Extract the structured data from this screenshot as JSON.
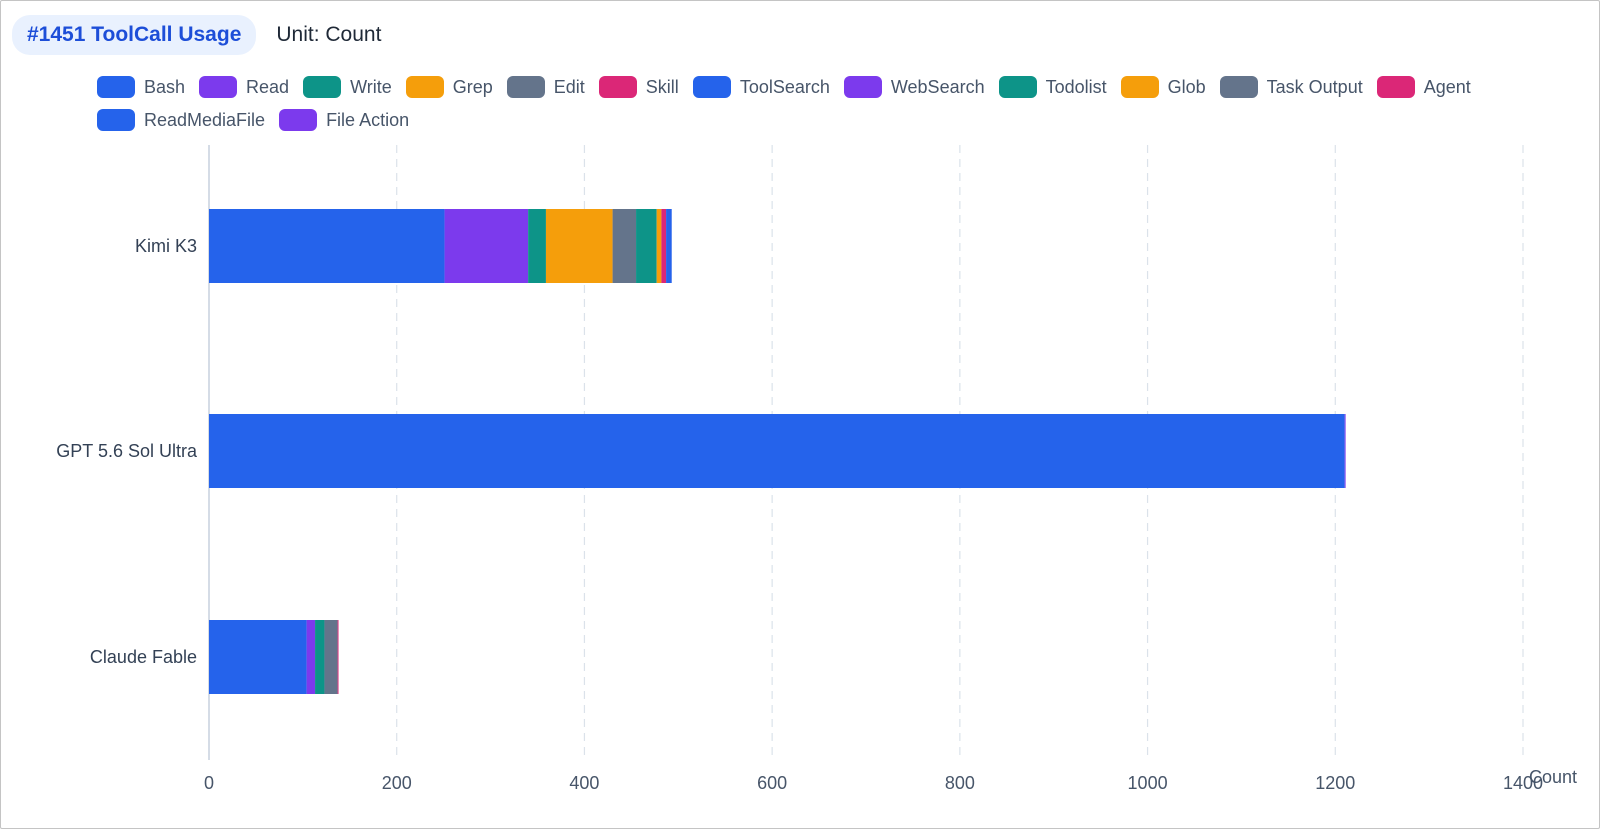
{
  "header": {
    "title": "#1451 ToolCall Usage",
    "unit": "Unit: Count"
  },
  "chart_data": {
    "type": "bar",
    "orientation": "horizontal",
    "stacked": true,
    "title": "#1451 ToolCall Usage",
    "xlabel": "Count",
    "xlim": [
      0,
      1400
    ],
    "xticks": [
      0,
      200,
      400,
      600,
      800,
      1000,
      1200,
      1400
    ],
    "grid": true,
    "legend_position": "top",
    "categories": [
      "Kimi K3",
      "GPT 5.6 Sol Ultra",
      "Claude Fable"
    ],
    "series": [
      {
        "name": "Bash",
        "color": "#2563eb",
        "values": [
          251,
          1210,
          104
        ]
      },
      {
        "name": "Read",
        "color": "#7c3aed",
        "values": [
          89,
          0,
          9
        ]
      },
      {
        "name": "Write",
        "color": "#0d9488",
        "values": [
          19,
          0,
          10
        ]
      },
      {
        "name": "Grep",
        "color": "#f59e0b",
        "values": [
          71,
          0,
          0
        ]
      },
      {
        "name": "Edit",
        "color": "#64748b",
        "values": [
          25,
          0,
          14
        ]
      },
      {
        "name": "Skill",
        "color": "#db2777",
        "values": [
          0,
          0,
          1
        ]
      },
      {
        "name": "ToolSearch",
        "color": "#2563eb",
        "values": [
          0,
          0,
          0
        ]
      },
      {
        "name": "WebSearch",
        "color": "#7c3aed",
        "values": [
          0,
          0,
          0
        ]
      },
      {
        "name": "Todolist",
        "color": "#0d9488",
        "values": [
          22,
          0,
          0
        ]
      },
      {
        "name": "Glob",
        "color": "#f59e0b",
        "values": [
          5,
          0,
          0
        ]
      },
      {
        "name": "Task Output",
        "color": "#64748b",
        "values": [
          0,
          0,
          0
        ]
      },
      {
        "name": "Agent",
        "color": "#db2777",
        "values": [
          5,
          0,
          0
        ]
      },
      {
        "name": "ReadMediaFile",
        "color": "#2563eb",
        "values": [
          6,
          0,
          0
        ]
      },
      {
        "name": "File Action",
        "color": "#7c3aed",
        "values": [
          0,
          1,
          0
        ]
      }
    ]
  }
}
